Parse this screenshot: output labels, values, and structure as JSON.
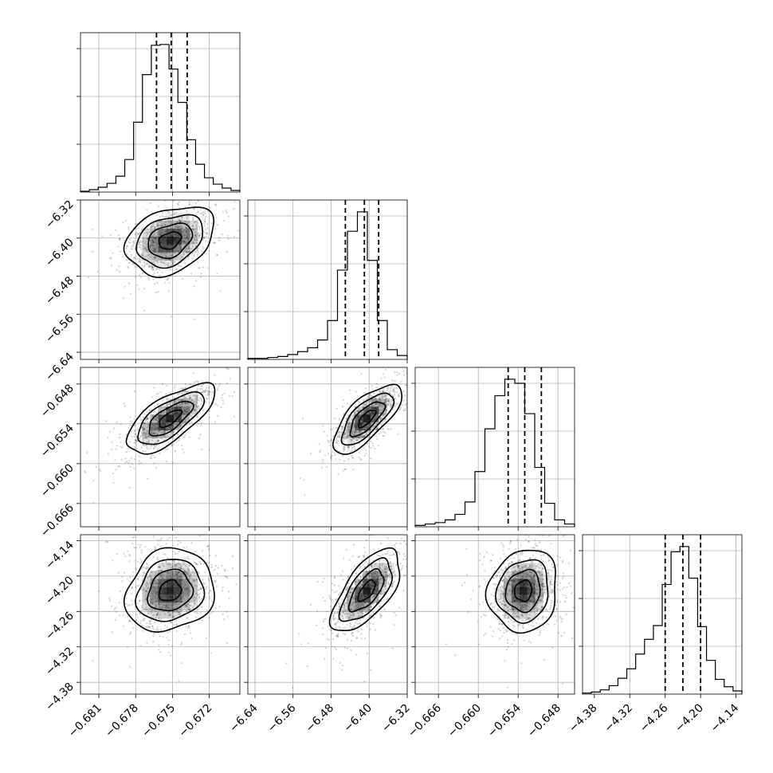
{
  "chart_data": {
    "type": "corner",
    "grid": true,
    "parameters": [
      {
        "range": [
          -0.6825,
          -0.6695
        ],
        "ticks": [
          -0.681,
          -0.678,
          -0.675,
          -0.672
        ],
        "tick_labels": [
          "−0.681",
          "−0.678",
          "−0.675",
          "−0.672"
        ],
        "quantiles": [
          -0.6763,
          -0.6751,
          -0.6738
        ]
      },
      {
        "range": [
          -6.655,
          -6.32
        ],
        "ticks": [
          -6.64,
          -6.56,
          -6.48,
          -6.4,
          -6.32
        ],
        "tick_labels": [
          "−6.64",
          "−6.56",
          "−6.48",
          "−6.40",
          "−6.32"
        ],
        "quantiles": [
          -6.45,
          -6.41,
          -6.38
        ]
      },
      {
        "range": [
          -0.6695,
          -0.6455
        ],
        "ticks": [
          -0.666,
          -0.66,
          -0.654,
          -0.648
        ],
        "tick_labels": [
          "−0.666",
          "−0.660",
          "−0.654",
          "−0.648"
        ],
        "quantiles": [
          -0.6555,
          -0.653,
          -0.6505
        ]
      },
      {
        "range": [
          -4.4,
          -4.13
        ],
        "ticks": [
          -4.38,
          -4.32,
          -4.26,
          -4.2,
          -4.14
        ],
        "tick_labels": [
          "−4.38",
          "−4.32",
          "−4.26",
          "−4.20",
          "−4.14"
        ],
        "quantiles": [
          -4.26,
          -4.23,
          -4.2
        ]
      }
    ],
    "diagonal_histograms": [
      {
        "counts": [
          1,
          3,
          6,
          11,
          20,
          41,
          88,
          148,
          185,
          186,
          155,
          113,
          66,
          35,
          18,
          10,
          5,
          2
        ]
      },
      {
        "counts": [
          1,
          1,
          2,
          3,
          5,
          8,
          12,
          20,
          40,
          92,
          132,
          152,
          102,
          40,
          10,
          4
        ]
      },
      {
        "counts": [
          1,
          2,
          3,
          5,
          9,
          18,
          40,
          71,
          95,
          107,
          104,
          82,
          43,
          17,
          5,
          2
        ]
      },
      {
        "counts": [
          1,
          2,
          4,
          8,
          15,
          24,
          38,
          52,
          65,
          104,
          135,
          140,
          110,
          64,
          32,
          14,
          7,
          3
        ]
      }
    ],
    "pair_panels": [
      {
        "x": 0,
        "y": 1,
        "center": [
          -0.6752,
          -6.405
        ],
        "sd": [
          0.0018,
          0.036
        ],
        "rho": 0.3
      },
      {
        "x": 0,
        "y": 2,
        "center": [
          -0.6752,
          -0.6532
        ],
        "sd": [
          0.0018,
          0.0026
        ],
        "rho": 0.7
      },
      {
        "x": 1,
        "y": 2,
        "center": [
          -6.405,
          -0.6532
        ],
        "sd": [
          0.036,
          0.0026
        ],
        "rho": 0.72
      },
      {
        "x": 0,
        "y": 3,
        "center": [
          -0.6752,
          -4.225
        ],
        "sd": [
          0.0018,
          0.035
        ],
        "rho": 0.15
      },
      {
        "x": 1,
        "y": 3,
        "center": [
          -6.405,
          -4.225
        ],
        "sd": [
          0.036,
          0.035
        ],
        "rho": 0.65
      },
      {
        "x": 2,
        "y": 3,
        "center": [
          -0.6532,
          -4.225
        ],
        "sd": [
          0.0026,
          0.035
        ],
        "rho": 0.1
      }
    ],
    "contour_levels_sigma": [
      0.5,
      1.0,
      1.5,
      2.0
    ]
  },
  "colors": {
    "axes": "#000000",
    "grid": "#b0b0b0",
    "points": "#000000",
    "density": "#000000"
  }
}
